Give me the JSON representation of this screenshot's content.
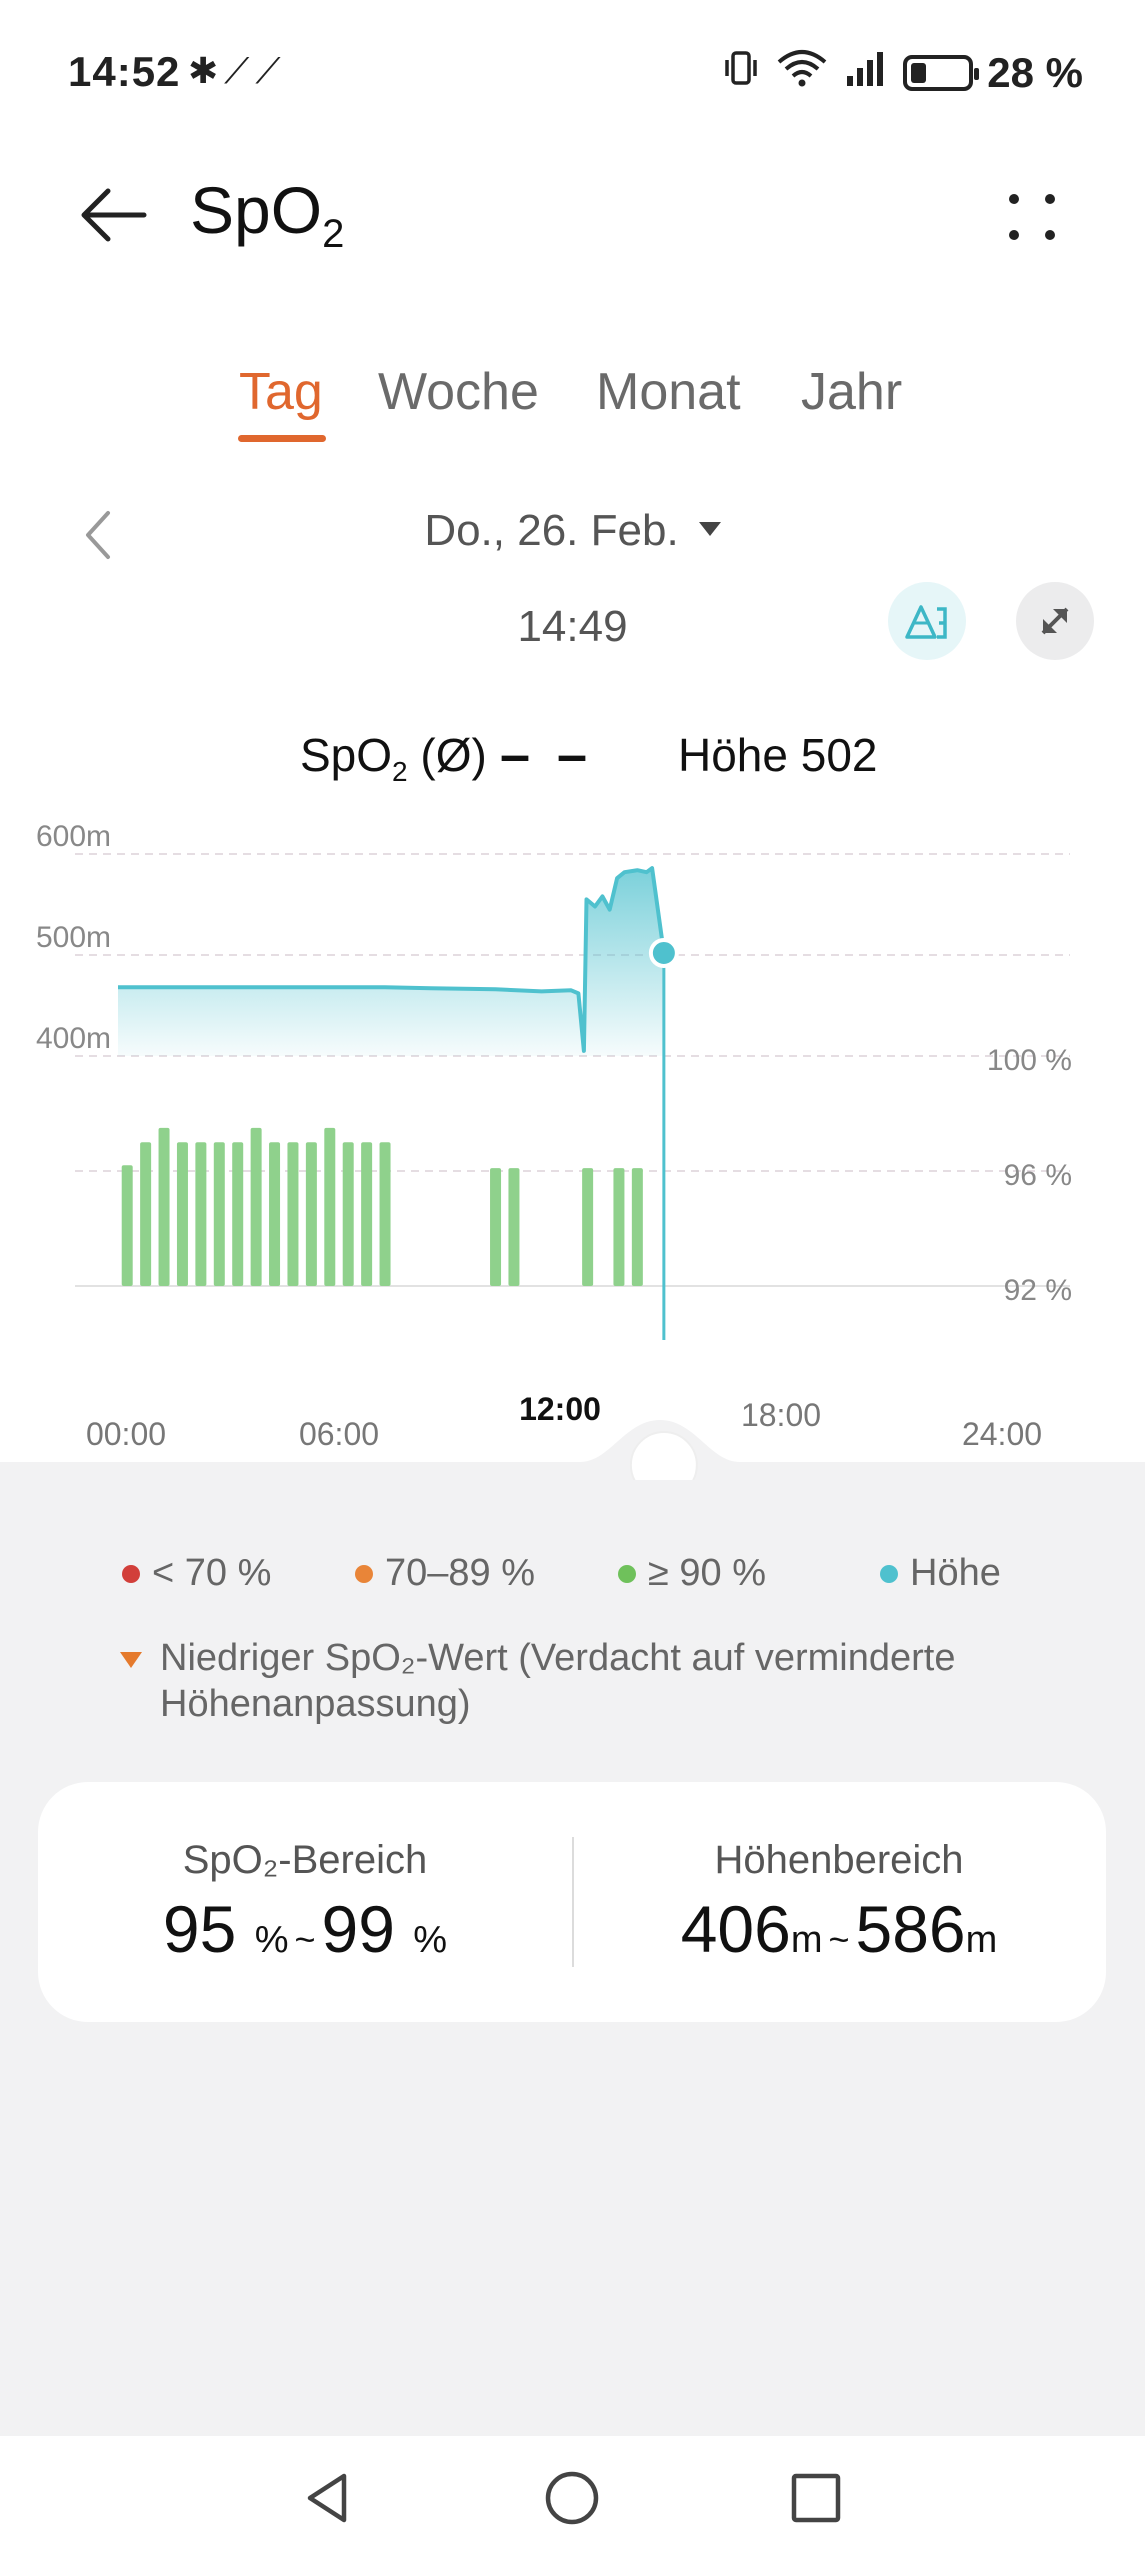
{
  "status_bar": {
    "time": "14:52",
    "left_icons": "✱⟋⟋",
    "battery_percent": "28 %",
    "battery_level": 0.28
  },
  "header": {
    "title": "SpO",
    "title_sub": "2"
  },
  "tabs": [
    {
      "label": "Tag",
      "active": true
    },
    {
      "label": "Woche",
      "active": false
    },
    {
      "label": "Monat",
      "active": false
    },
    {
      "label": "Jahr",
      "active": false
    }
  ],
  "date": {
    "label": "Do., 26. Feb.",
    "time": "14:49"
  },
  "readout": {
    "spo2_label": "SpO",
    "spo2_sub": "2",
    "spo2_suffix": " (Ø)",
    "spo2_value": "– –",
    "height_label": "Höhe 502"
  },
  "chart_data": {
    "type": "bar",
    "x_tick_labels": [
      "00:00",
      "06:00",
      "12:00",
      "18:00",
      "24:00"
    ],
    "x_selected_label": "12:00",
    "x_range_hours": [
      0,
      24
    ],
    "altitude_axis": {
      "ticks": [
        "600m",
        "500m",
        "400m"
      ],
      "range_m": [
        400,
        600
      ]
    },
    "spo2_axis": {
      "ticks": [
        "100 %",
        "96 %",
        "92 %"
      ],
      "range_percent": [
        92,
        100
      ]
    },
    "selected_time": "14:49",
    "selected_hour": 14.82,
    "selected_altitude_m": 502,
    "series": [
      {
        "name": "SpO₂",
        "color": "#8fd18c",
        "bars": [
          {
            "hour": 0.25,
            "value": 96.2
          },
          {
            "hour": 0.75,
            "value": 97.0
          },
          {
            "hour": 1.25,
            "value": 97.5
          },
          {
            "hour": 1.75,
            "value": 97.0
          },
          {
            "hour": 2.25,
            "value": 97.0
          },
          {
            "hour": 2.75,
            "value": 97.0
          },
          {
            "hour": 3.25,
            "value": 97.0
          },
          {
            "hour": 3.75,
            "value": 97.5
          },
          {
            "hour": 4.25,
            "value": 97.0
          },
          {
            "hour": 4.75,
            "value": 97.0
          },
          {
            "hour": 5.25,
            "value": 97.0
          },
          {
            "hour": 5.75,
            "value": 97.5
          },
          {
            "hour": 6.25,
            "value": 97.0
          },
          {
            "hour": 6.75,
            "value": 97.0
          },
          {
            "hour": 7.25,
            "value": 97.0
          },
          {
            "hour": 10.25,
            "value": 96.1
          },
          {
            "hour": 10.75,
            "value": 96.1
          },
          {
            "hour": 12.75,
            "value": 96.1
          },
          {
            "hour": 13.6,
            "value": 96.1
          },
          {
            "hour": 14.1,
            "value": 96.1
          }
        ]
      },
      {
        "name": "Höhe",
        "color": "#4fc1ce",
        "points": [
          [
            0.0,
            468
          ],
          [
            7.25,
            468
          ],
          [
            8.5,
            467
          ],
          [
            10.25,
            466
          ],
          [
            11.5,
            464
          ],
          [
            12.3,
            465
          ],
          [
            12.5,
            462
          ],
          [
            12.65,
            405
          ],
          [
            12.72,
            555
          ],
          [
            12.95,
            548
          ],
          [
            13.15,
            558
          ],
          [
            13.35,
            545
          ],
          [
            13.55,
            576
          ],
          [
            13.75,
            582
          ],
          [
            14.1,
            584
          ],
          [
            14.35,
            582
          ],
          [
            14.5,
            586
          ],
          [
            14.82,
            502
          ]
        ]
      }
    ],
    "grid": true
  },
  "legend": [
    {
      "label": "< 70 %",
      "color": "#d23f3a"
    },
    {
      "label": "70–89 %",
      "color": "#e98538"
    },
    {
      "label": "≥ 90 %",
      "color": "#6fc15b"
    },
    {
      "label": "Höhe",
      "color": "#4fc1ce"
    }
  ],
  "note": {
    "text": "Niedriger SpO₂-Wert (Verdacht auf verminderte Höhenanpassung)",
    "color": "#e57a2c"
  },
  "ranges": {
    "spo2": {
      "title": "SpO₂-Bereich",
      "min": "95",
      "max": "99",
      "unit": "%",
      "tilde": "~"
    },
    "height": {
      "title": "Höhenbereich",
      "min": "406",
      "max": "586",
      "unit": "m",
      "tilde": "~"
    }
  },
  "colors": {
    "accent": "#e0672e",
    "altitude": "#4fc1ce",
    "spo2_bar": "#8fd18c"
  }
}
